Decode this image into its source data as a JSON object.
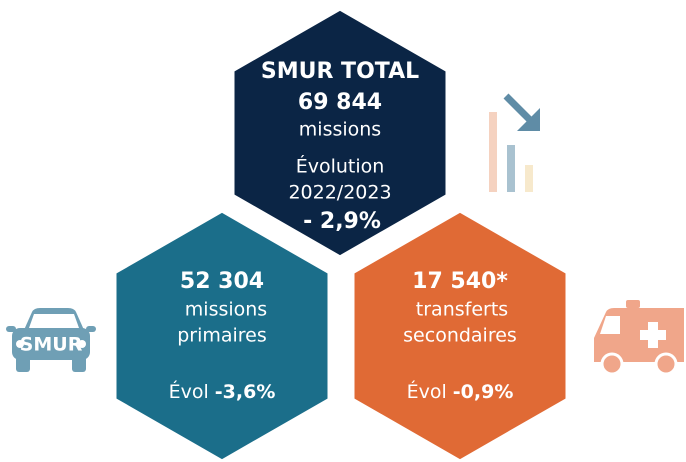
{
  "top": {
    "title": "SMUR TOTAL",
    "count": "69 844",
    "unit": "missions",
    "evolution_label": "Évolution",
    "period": "2022/2023",
    "evolution": "- 2,9%"
  },
  "primary": {
    "count": "52 304",
    "lines": [
      "missions",
      "primaires"
    ],
    "evolution_label": "Évol",
    "evolution": "-3,6%"
  },
  "secondary": {
    "count": "17 540*",
    "lines": [
      "transferts",
      "secondaires"
    ],
    "evolution_label": "Évol",
    "evolution": "-0,9%"
  },
  "icons": {
    "car_label": "SMUR"
  }
}
